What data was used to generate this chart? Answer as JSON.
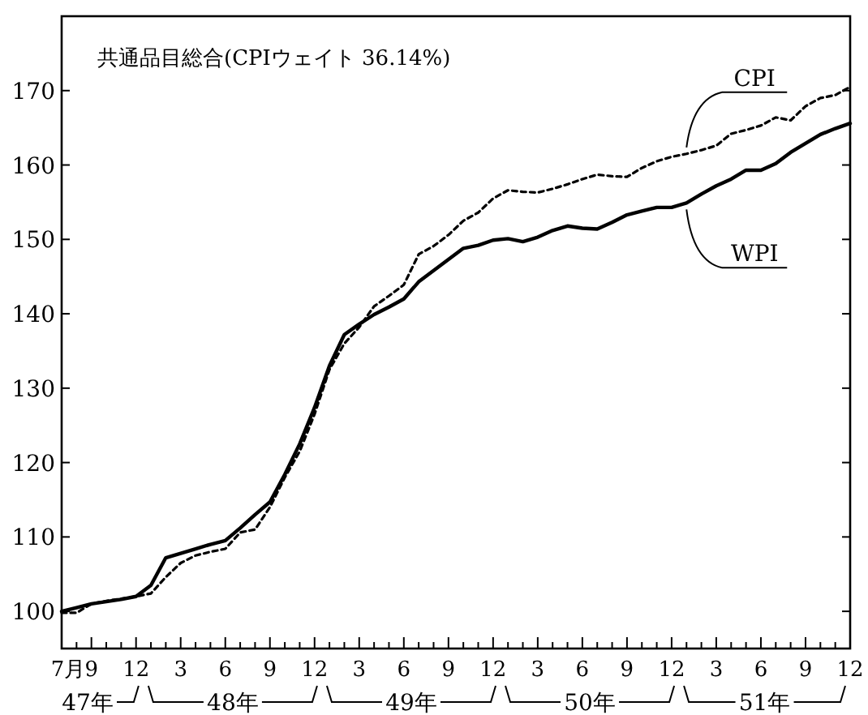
{
  "chart_data": {
    "type": "line",
    "title": "共通品目総合(CPIウェイト 36.14%)",
    "categories": [
      "7月",
      null,
      "9",
      null,
      null,
      "12",
      null,
      null,
      "3",
      null,
      null,
      "6",
      null,
      null,
      "9",
      null,
      null,
      "12",
      null,
      null,
      "3",
      null,
      null,
      "6",
      null,
      null,
      "9",
      null,
      null,
      "12",
      null,
      null,
      "3",
      null,
      null,
      "6",
      null,
      null,
      "9",
      null,
      null,
      "12",
      null,
      null,
      "3",
      null,
      null,
      "6",
      null,
      null,
      "9",
      null,
      null,
      "12"
    ],
    "series": [
      {
        "name": "CPI",
        "color": "#000000",
        "line_style": "dashed",
        "values": [
          99.8,
          99.8,
          101,
          101.4,
          101.7,
          102,
          102.4,
          104.6,
          106.5,
          107.5,
          108,
          108.4,
          110.6,
          111,
          114,
          118,
          121.5,
          126.5,
          132.5,
          136,
          138.2,
          141,
          142.4,
          143.9,
          148,
          149.1,
          150.6,
          152.5,
          153.6,
          155.5,
          156.6,
          156.4,
          156.3,
          156.8,
          157.4,
          158.1,
          158.7,
          158.5,
          158.4,
          159.6,
          160.5,
          161.1,
          161.5,
          162,
          162.6,
          164.2,
          164.7,
          165.3,
          166.4,
          166,
          167.9,
          169,
          169.4,
          170.5
        ]
      },
      {
        "name": "WPI",
        "color": "#000000",
        "line_style": "solid",
        "values": [
          100,
          100.5,
          101,
          101.3,
          101.6,
          102,
          103.5,
          107.2,
          107.8,
          108.4,
          109,
          109.5,
          111.2,
          113,
          114.7,
          118.4,
          122.5,
          127.4,
          133,
          137.2,
          138.6,
          139.9,
          140.9,
          142,
          144.3,
          145.8,
          147.3,
          148.8,
          149.2,
          149.9,
          150.1,
          149.7,
          150.3,
          151.2,
          151.8,
          151.5,
          151.4,
          152.3,
          153.3,
          153.8,
          154.3,
          154.3,
          154.9,
          156.1,
          157.2,
          158.1,
          159.3,
          159.3,
          160.2,
          161.7,
          162.9,
          164.1,
          164.9,
          165.6
        ]
      }
    ],
    "ylim": [
      95,
      180
    ],
    "yticks": [
      100,
      110,
      120,
      130,
      140,
      150,
      160,
      170
    ],
    "annotations": [
      "47年",
      "48年",
      "49年",
      "50年",
      "51年"
    ],
    "grid": false,
    "legend": "right"
  }
}
